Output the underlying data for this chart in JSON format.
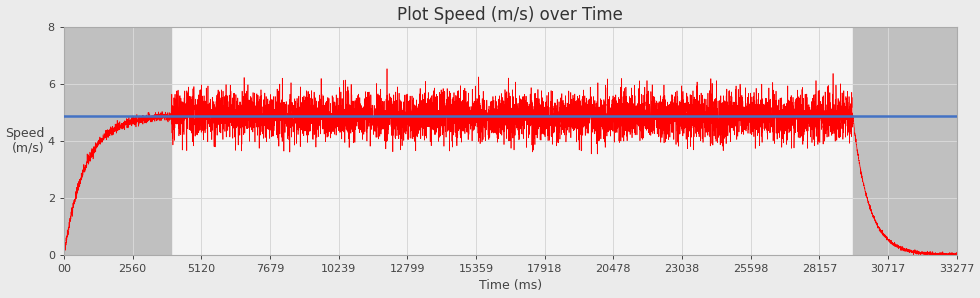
{
  "title": "Plot Speed (m/s) over Time",
  "xlabel": "Time (ms)",
  "ylabel": "Speed\n(m/s)",
  "xlim": [
    0,
    33277
  ],
  "ylim": [
    0,
    8
  ],
  "yticks": [
    0,
    2,
    4,
    6,
    8
  ],
  "xtick_labels": [
    "00",
    "2560",
    "5120",
    "7679",
    "10239",
    "12799",
    "15359",
    "17918",
    "20478",
    "23038",
    "25598",
    "28157",
    "30717",
    "33277"
  ],
  "xtick_values": [
    0,
    2560,
    5120,
    7679,
    10239,
    12799,
    15359,
    17918,
    20478,
    23038,
    25598,
    28157,
    30717,
    33277
  ],
  "avg_speed": 4.87,
  "avg_line_color": "#4472C4",
  "speed_line_color": "#FF0000",
  "bg_color": "#EBEBEB",
  "plot_bg_color": "#F5F5F5",
  "gray_shade_color": "#C0C0C0",
  "shade_start1": 0,
  "shade_end1": 4000,
  "shade_start2": 29400,
  "shade_end2": 33277,
  "accel_end": 4000,
  "decel_start": 29400,
  "total_time": 33277,
  "seed": 42,
  "title_fontsize": 12,
  "label_fontsize": 9,
  "tick_fontsize": 8,
  "figwidth": 9.8,
  "figheight": 2.98,
  "dpi": 100
}
